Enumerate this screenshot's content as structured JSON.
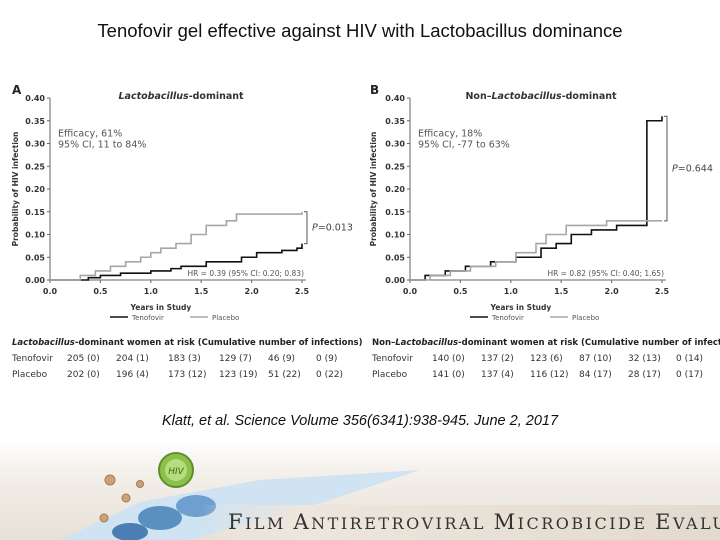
{
  "slide_title": "Tenofovir gel effective against HIV with Lactobacillus dominance",
  "citation": "Klatt, et al. Science Volume 356(6341):938-945. June 2, 2017",
  "footer": {
    "logo_text": "FILM ANTIRETROVIRAL MICROBICIDE EVALUATION",
    "logo_words": [
      {
        "initial": "F",
        "rest": "ILM"
      },
      {
        "initial": "A",
        "rest": "NTIRETROVIRAL"
      },
      {
        "initial": "M",
        "rest": "ICROBICIDE"
      },
      {
        "initial": "E",
        "rest": "VALUATION"
      }
    ],
    "badge_text": "HIV"
  },
  "colors": {
    "tenofovir": "#111111",
    "placebo": "#a6a6a6",
    "accent_green": "#7fb23a",
    "cell_blue": "#5a8fc2"
  },
  "chart_data": [
    {
      "type": "line",
      "panel_label": "A",
      "title": "Lactobacillus-dominant",
      "title_italic": "Lactobacillus",
      "title_rest": "-dominant",
      "xlabel": "Years in Study",
      "ylabel": "Probability of HIV infection",
      "xlim": [
        0,
        2.5
      ],
      "ylim": [
        0,
        0.4
      ],
      "xticks": [
        "0.0",
        "0.5",
        "1.0",
        "1.5",
        "2.0",
        "2.5"
      ],
      "yticks": [
        "0.00",
        "0.05",
        "0.10",
        "0.15",
        "0.20",
        "0.25",
        "0.30",
        "0.35",
        "0.40"
      ],
      "efficacy_line1": "Efficacy,  61%",
      "efficacy_line2": "95% CI,  11 to 84%",
      "p_value": "P=0.013",
      "hr_text": "HR = 0.39 (95% CI: 0.20; 0.83)",
      "legend": [
        "Tenofovir",
        "Placebo"
      ],
      "series": [
        {
          "name": "Tenofovir",
          "x": [
            0,
            0.38,
            0.5,
            0.7,
            1.0,
            1.2,
            1.3,
            1.55,
            1.9,
            2.05,
            2.3,
            2.45,
            2.5
          ],
          "y": [
            0,
            0.005,
            0.01,
            0.015,
            0.02,
            0.025,
            0.03,
            0.04,
            0.05,
            0.06,
            0.065,
            0.07,
            0.08
          ]
        },
        {
          "name": "Placebo",
          "x": [
            0,
            0.3,
            0.45,
            0.6,
            0.75,
            0.9,
            1.0,
            1.1,
            1.25,
            1.4,
            1.55,
            1.75,
            1.85,
            2.5
          ],
          "y": [
            0,
            0.01,
            0.02,
            0.03,
            0.04,
            0.05,
            0.06,
            0.07,
            0.08,
            0.1,
            0.12,
            0.13,
            0.145,
            0.15
          ]
        }
      ]
    },
    {
      "type": "line",
      "panel_label": "B",
      "title": "Non–Lactobacillus-dominant",
      "title_prefix": "Non–",
      "title_italic": "Lactobacillus",
      "title_rest": "-dominant",
      "xlabel": "Years in Study",
      "ylabel": "Probability of HIV infection",
      "xlim": [
        0,
        2.5
      ],
      "ylim": [
        0,
        0.4
      ],
      "xticks": [
        "0.0",
        "0.5",
        "1.0",
        "1.5",
        "2.0",
        "2.5"
      ],
      "yticks": [
        "0.00",
        "0.05",
        "0.10",
        "0.15",
        "0.20",
        "0.25",
        "0.30",
        "0.35",
        "0.40"
      ],
      "efficacy_line1": "Efficacy, 18%",
      "efficacy_line2": "95% CI, -77 to 63%",
      "p_value": "P=0.644",
      "hr_text": "HR = 0.82 (95% CI: 0.40; 1.65)",
      "legend": [
        "Tenofovir",
        "Placebo"
      ],
      "series": [
        {
          "name": "Tenofovir",
          "x": [
            0,
            0.15,
            0.35,
            0.55,
            0.8,
            1.05,
            1.3,
            1.45,
            1.6,
            1.8,
            2.05,
            2.35,
            2.5
          ],
          "y": [
            0,
            0.01,
            0.02,
            0.03,
            0.04,
            0.05,
            0.07,
            0.08,
            0.1,
            0.11,
            0.12,
            0.35,
            0.36
          ]
        },
        {
          "name": "Placebo",
          "x": [
            0,
            0.2,
            0.4,
            0.6,
            0.85,
            1.05,
            1.25,
            1.35,
            1.55,
            1.95,
            2.4,
            2.5
          ],
          "y": [
            0,
            0.01,
            0.02,
            0.03,
            0.04,
            0.06,
            0.08,
            0.1,
            0.12,
            0.13,
            0.13,
            0.13
          ]
        }
      ]
    }
  ],
  "risk_tables": [
    {
      "title_italic": "Lactobacillus",
      "title_rest": "-dominant women at risk (Cumulative number of infections)",
      "rows": [
        {
          "label": "Tenofovir",
          "values": [
            "205 (0)",
            "204 (1)",
            "183 (3)",
            "129 (7)",
            "46 (9)",
            "0 (9)"
          ]
        },
        {
          "label": "Placebo",
          "values": [
            "202 (0)",
            "196 (4)",
            "173 (12)",
            "123 (19)",
            "51 (22)",
            "0 (22)"
          ]
        }
      ]
    },
    {
      "title_prefix": "Non–",
      "title_italic": "Lactobacillus",
      "title_rest": "-dominant women at risk (Cumulative number of infections)",
      "rows": [
        {
          "label": "Tenofovir",
          "values": [
            "140 (0)",
            "137 (2)",
            "123 (6)",
            "87 (10)",
            "32 (13)",
            "0 (14)"
          ]
        },
        {
          "label": "Placebo",
          "values": [
            "141 (0)",
            "137 (4)",
            "116 (12)",
            "84 (17)",
            "28 (17)",
            "0 (17)"
          ]
        }
      ]
    }
  ]
}
